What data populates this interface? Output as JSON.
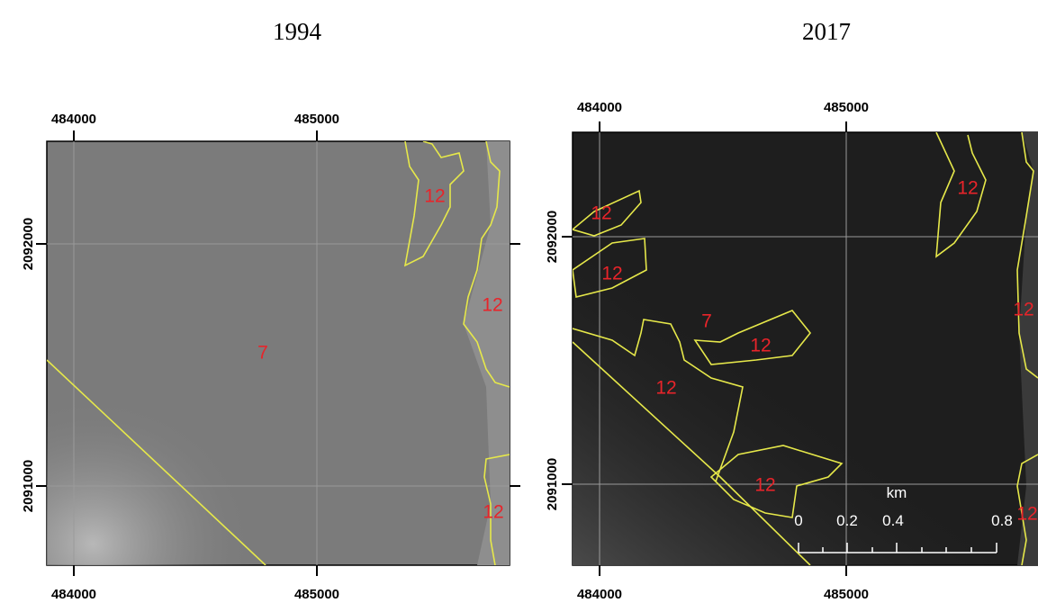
{
  "panels": [
    {
      "title": "1994",
      "x_ticks_top": [
        "484000",
        "485000"
      ],
      "x_ticks_bottom": [
        "484000",
        "485000"
      ],
      "y_ticks": [
        "2092000",
        "2091000"
      ],
      "zone_labels": [
        "12",
        "12",
        "7",
        "12"
      ]
    },
    {
      "title": "2017",
      "x_ticks_top": [
        "484000",
        "485000"
      ],
      "x_ticks_bottom": [
        "484000",
        "485000"
      ],
      "y_ticks": [
        "2092000",
        "2091000"
      ],
      "zone_labels": [
        "12",
        "12",
        "12",
        "12",
        "7",
        "12",
        "12",
        "12",
        "12"
      ],
      "scale": {
        "unit": "km",
        "labels": [
          "0",
          "0.2",
          "0.4",
          "0.8"
        ]
      }
    }
  ]
}
